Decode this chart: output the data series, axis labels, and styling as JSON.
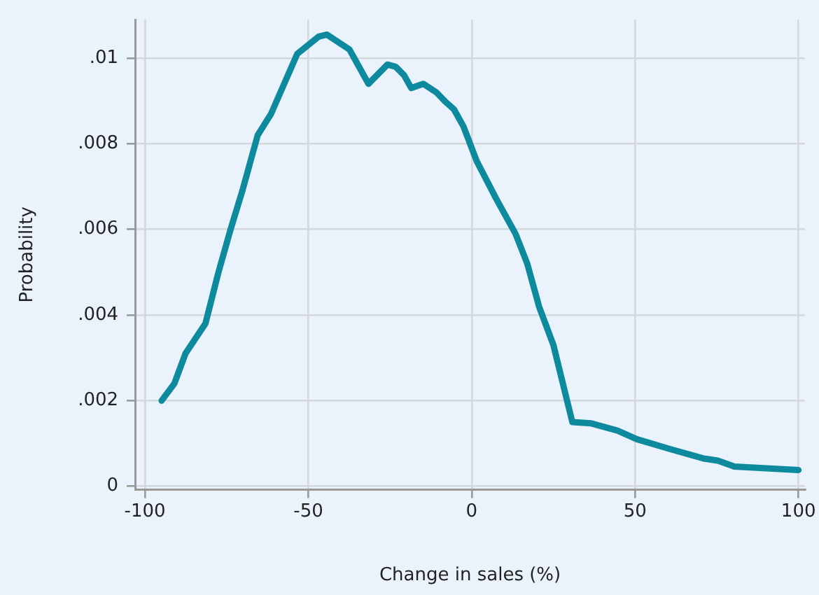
{
  "chart_data": {
    "type": "line",
    "xlabel": "Change in sales (%)",
    "ylabel": "Probability",
    "color": "#0e8a9e",
    "x": [
      -94.9,
      -91,
      -87.6,
      -81.5,
      -77.5,
      -73.8,
      -70.2,
      -65.5,
      -61.4,
      -53.4,
      -46.9,
      -44.3,
      -37.4,
      -31.6,
      -25.8,
      -23.3,
      -20.7,
      -18.5,
      -14.8,
      -10.8,
      -8.3,
      -5.4,
      -2.5,
      1.5,
      7.6,
      13.4,
      17,
      20.6,
      25,
      30.8,
      36.6,
      44.6,
      50.5,
      60.7,
      70.9,
      75.3,
      80.4,
      100
    ],
    "values": [
      0.002,
      0.0024,
      0.0031,
      0.0038,
      0.005,
      0.006,
      0.0069,
      0.0082,
      0.0087,
      0.0101,
      0.0105,
      0.01055,
      0.0102,
      0.0094,
      0.00985,
      0.0098,
      0.0096,
      0.0093,
      0.0094,
      0.0092,
      0.009,
      0.0088,
      0.0084,
      0.0076,
      0.0067,
      0.0059,
      0.0052,
      0.0042,
      0.0033,
      0.0015,
      0.00147,
      0.0013,
      0.0011,
      0.00087,
      0.00065,
      0.0006,
      0.00046,
      0.00038
    ],
    "xlim": [
      -103,
      102
    ],
    "xticks": [
      -100,
      -50,
      0,
      50,
      100
    ],
    "ylim": [
      -8e-05,
      0.0109
    ],
    "yticks": [
      0,
      {
        "value": 0.002,
        "label": ".002"
      },
      {
        "value": 0.004,
        "label": ".004"
      },
      {
        "value": 0.006,
        "label": ".006"
      },
      {
        "value": 0.008,
        "label": ".008"
      },
      {
        "value": 0.01,
        "label": ".01"
      }
    ],
    "grid": true,
    "legend": false,
    "marker": "none",
    "line_style": "solid"
  }
}
